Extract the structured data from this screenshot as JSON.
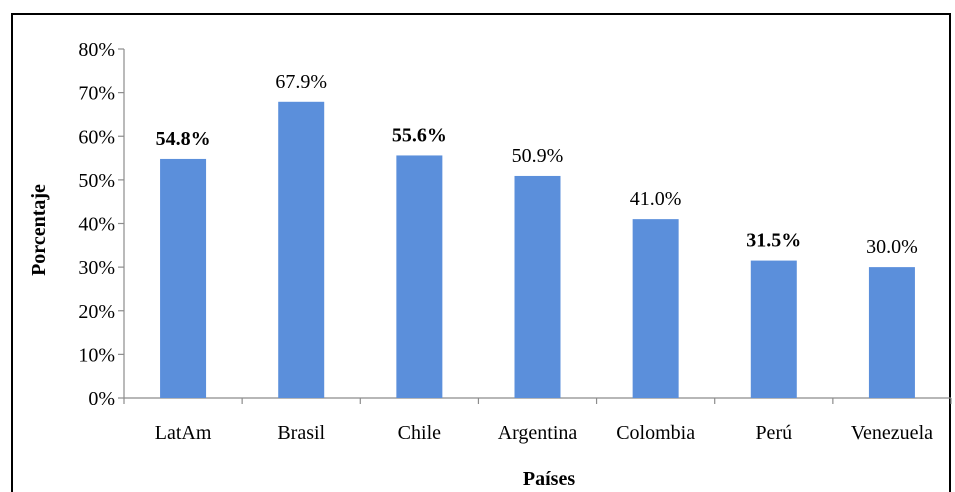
{
  "chart_data": {
    "type": "bar",
    "categories": [
      "LatAm",
      "Brasil",
      "Chile",
      "Argentina",
      "Colombia",
      "Perú",
      "Venezuela"
    ],
    "values": [
      54.8,
      67.9,
      55.6,
      50.9,
      41.0,
      31.5,
      30.0
    ],
    "data_labels": [
      "54.8%",
      "67.9%",
      "55.6%",
      "50.9%",
      "41.0%",
      "31.5%",
      "30.0%"
    ],
    "bold_labels": [
      true,
      false,
      true,
      false,
      false,
      true,
      false
    ],
    "yticks": [
      0,
      10,
      20,
      30,
      40,
      50,
      60,
      70,
      80
    ],
    "ytick_labels": [
      "0%",
      "10%",
      "20%",
      "30%",
      "40%",
      "50%",
      "60%",
      "70%",
      "80%"
    ],
    "ylim": [
      0,
      80
    ],
    "xlabel": "Países",
    "ylabel": "Porcentaje",
    "grid": false,
    "legend": false,
    "bar_color": "#5b8fdb"
  }
}
